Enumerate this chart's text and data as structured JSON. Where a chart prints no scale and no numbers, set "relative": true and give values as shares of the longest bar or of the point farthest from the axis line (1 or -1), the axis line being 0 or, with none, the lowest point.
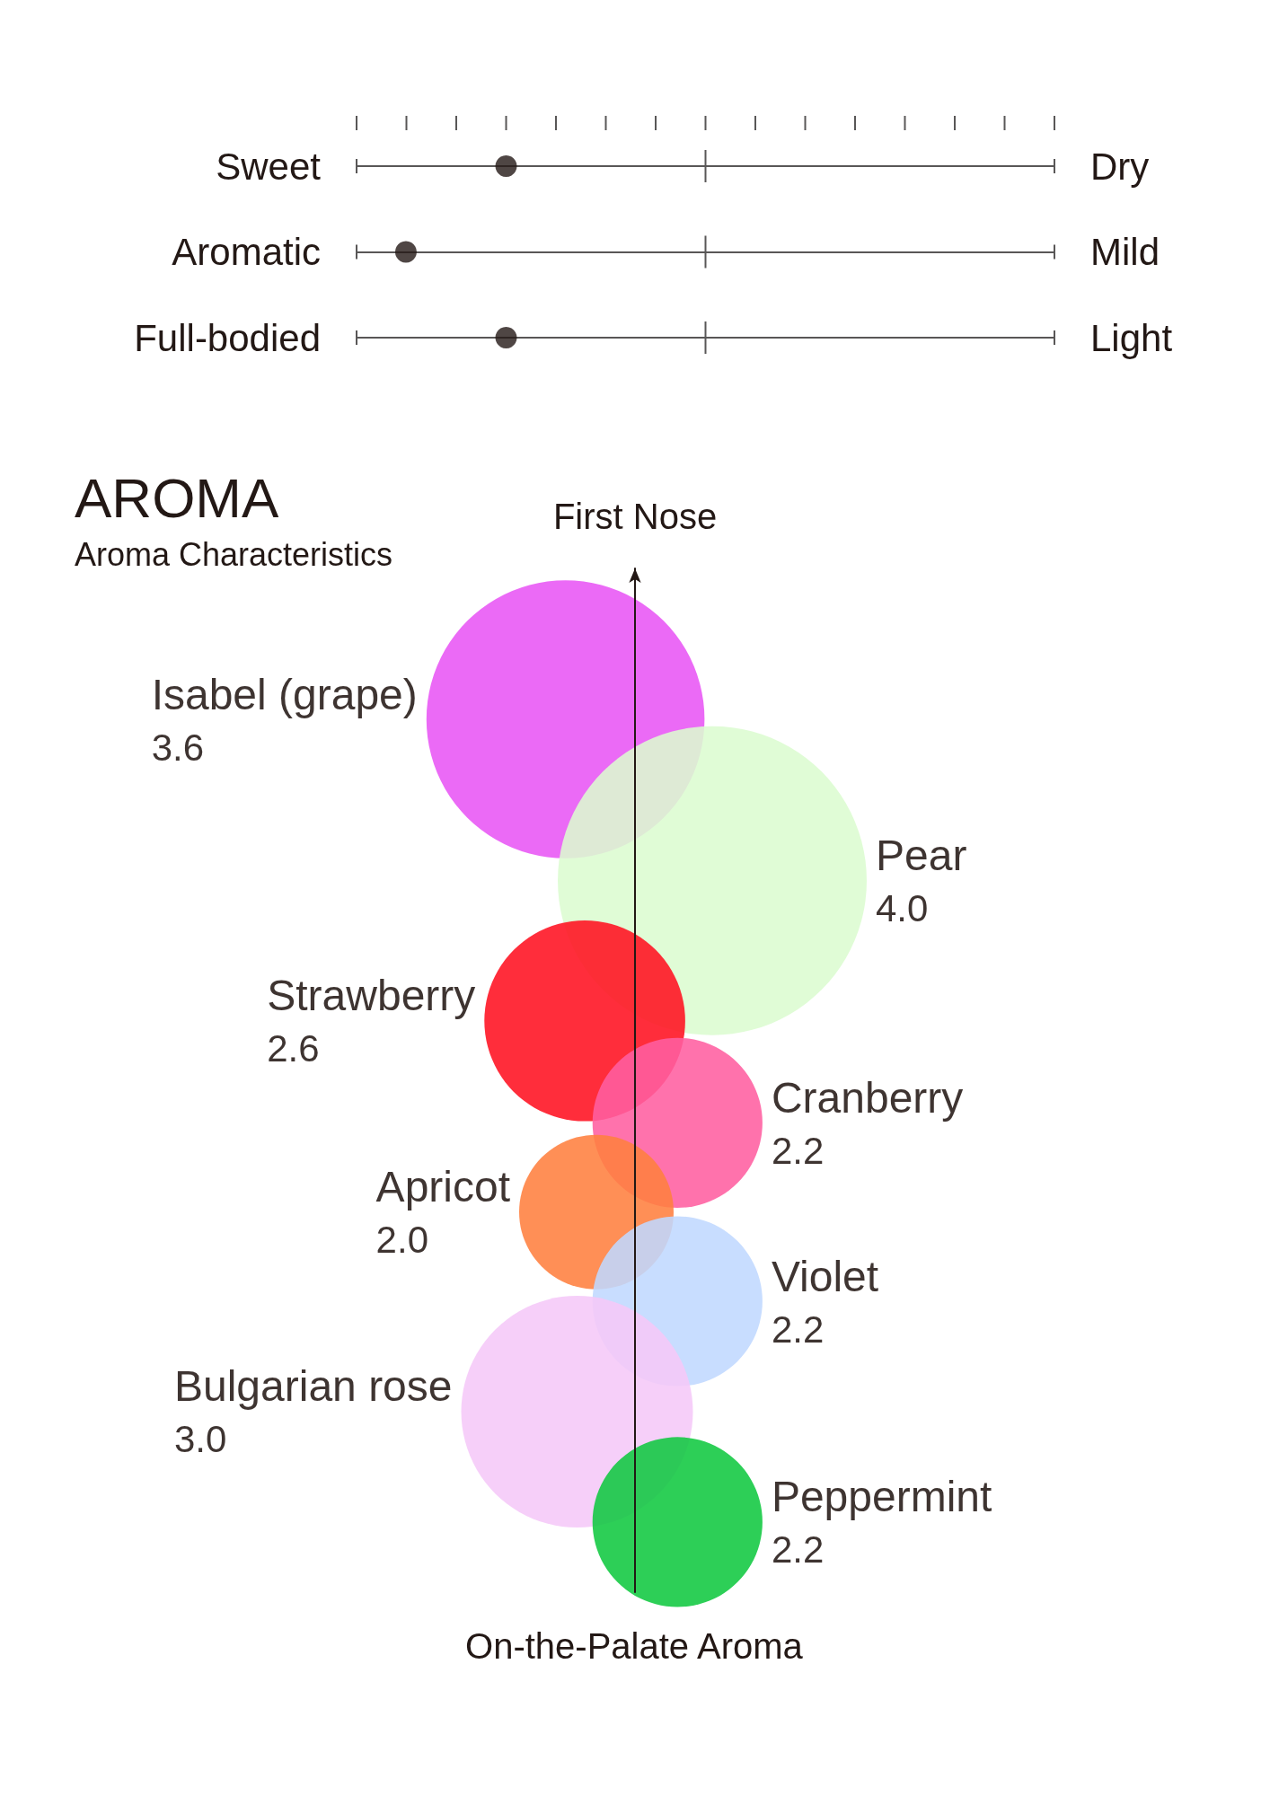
{
  "chart_data": [
    {
      "type": "scatter",
      "orientation": "horizontal",
      "relative": true,
      "categories": [
        "Sweet",
        "Aromatic",
        "Full-bodied"
      ],
      "y2_categories": [
        "Dry",
        "Mild",
        "Light"
      ],
      "values": [
        1,
        0.33,
        1
      ],
      "color": "#231815",
      "grid": "y",
      "marker": "circle",
      "tick_labels": "y"
    },
    {
      "type": "other",
      "title": "AROMA",
      "subtitle": "Aroma Characteristics",
      "ylabel": "First Nose",
      "xlabel": "On-the-Palate Aroma",
      "categories": [
        "Isabel (grape)",
        "Pear",
        "Strawberry",
        "Cranberry",
        "Apricot",
        "Violet",
        "Bulgarian rose",
        "Peppermint"
      ],
      "values": [
        3.6,
        4.0,
        2.6,
        2.2,
        2.0,
        2.2,
        3.0,
        2.2
      ],
      "value_labels": [
        "3.6",
        "4.0",
        "2.6",
        "2.2",
        "2.0",
        "2.2",
        "3.0",
        "2.2"
      ],
      "colors": [
        "#e855f5",
        "#dcfcd0",
        "#ff1020",
        "#ff5fa0",
        "#ff7f3f",
        "#c0d8ff",
        "#f5c8f8",
        "#10c840"
      ]
    }
  ]
}
